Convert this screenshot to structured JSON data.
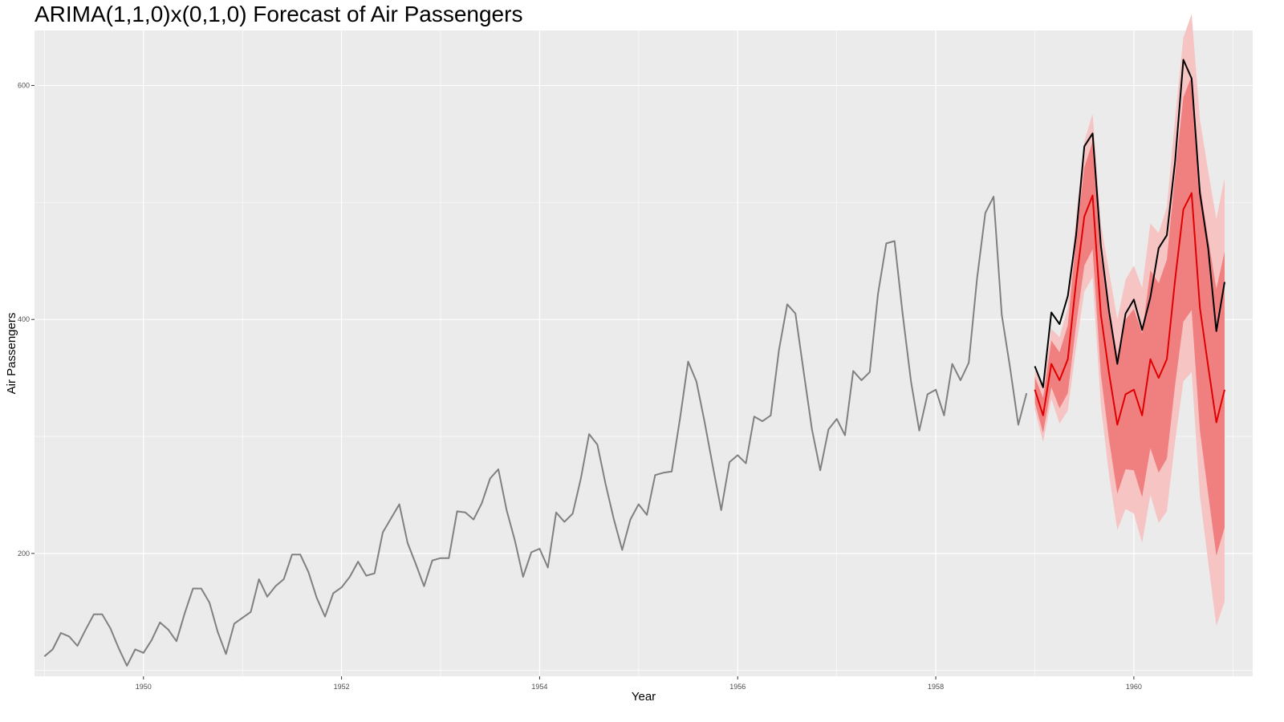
{
  "chart_data": {
    "type": "line",
    "title": "ARIMA(1,1,0)x(0,1,0) Forecast of Air Passengers",
    "xlabel": "Year",
    "ylabel": "Air Passengers",
    "xlim": [
      1948.9,
      1961.2
    ],
    "ylim": [
      95,
      647
    ],
    "x_ticks": [
      1950,
      1952,
      1954,
      1956,
      1958,
      1960
    ],
    "x_tick_labels": [
      "1950",
      "1952",
      "1954",
      "1956",
      "1958",
      "1960"
    ],
    "y_ticks": [
      200,
      400,
      600
    ],
    "y_tick_labels": [
      "200",
      "400",
      "600"
    ],
    "grid": true,
    "legend": "none",
    "colors": {
      "panel": "#ebebeb",
      "grid": "#ffffff",
      "history": "#808080",
      "actual": "#000000",
      "forecast": "#e00000",
      "ci80": "#f08080",
      "ci95": "#f7c4c4"
    },
    "history_start": 1949.0,
    "forecast_start": 1959.0,
    "history": [
      112,
      118,
      132,
      129,
      121,
      135,
      148,
      148,
      136,
      119,
      104,
      118,
      115,
      126,
      141,
      135,
      125,
      149,
      170,
      170,
      158,
      133,
      114,
      140,
      145,
      150,
      178,
      163,
      172,
      178,
      199,
      199,
      184,
      162,
      146,
      166,
      171,
      180,
      193,
      181,
      183,
      218,
      230,
      242,
      209,
      191,
      172,
      194,
      196,
      196,
      236,
      235,
      229,
      243,
      264,
      272,
      237,
      211,
      180,
      201,
      204,
      188,
      235,
      227,
      234,
      264,
      302,
      293,
      259,
      229,
      203,
      229,
      242,
      233,
      267,
      269,
      270,
      315,
      364,
      347,
      312,
      274,
      237,
      278,
      284,
      277,
      317,
      313,
      318,
      374,
      413,
      405,
      355,
      306,
      271,
      306,
      315,
      301,
      356,
      348,
      355,
      422,
      465,
      467,
      404,
      347,
      305,
      336,
      340,
      318,
      362,
      348,
      363,
      435,
      491,
      505,
      404,
      359,
      310,
      337
    ],
    "actual": [
      360,
      342,
      406,
      396,
      420,
      472,
      548,
      559,
      463,
      407,
      362,
      405,
      417,
      391,
      419,
      461,
      472,
      535,
      622,
      606,
      508,
      461,
      390,
      432
    ],
    "forecast": [
      340,
      318,
      362,
      348,
      366,
      432,
      488,
      506,
      404,
      354,
      310,
      336,
      340,
      318,
      366,
      350,
      366,
      434,
      494,
      508,
      410,
      360,
      312,
      340
    ],
    "ci80_lower": [
      329,
      303,
      342,
      324,
      337,
      395,
      446,
      460,
      353,
      297,
      251,
      272,
      271,
      248,
      290,
      269,
      281,
      344,
      398,
      408,
      305,
      251,
      198,
      222
    ],
    "ci80_upper": [
      351,
      333,
      382,
      372,
      395,
      469,
      530,
      552,
      455,
      411,
      369,
      400,
      409,
      388,
      442,
      431,
      451,
      524,
      590,
      608,
      515,
      469,
      426,
      458
    ],
    "ci95_lower": [
      323,
      295,
      332,
      311,
      322,
      376,
      424,
      436,
      326,
      267,
      220,
      238,
      234,
      209,
      250,
      226,
      236,
      296,
      347,
      355,
      249,
      193,
      138,
      159
    ],
    "ci95_upper": [
      357,
      341,
      392,
      385,
      410,
      488,
      552,
      576,
      482,
      441,
      400,
      434,
      446,
      427,
      482,
      474,
      496,
      572,
      641,
      661,
      571,
      527,
      486,
      521
    ]
  }
}
